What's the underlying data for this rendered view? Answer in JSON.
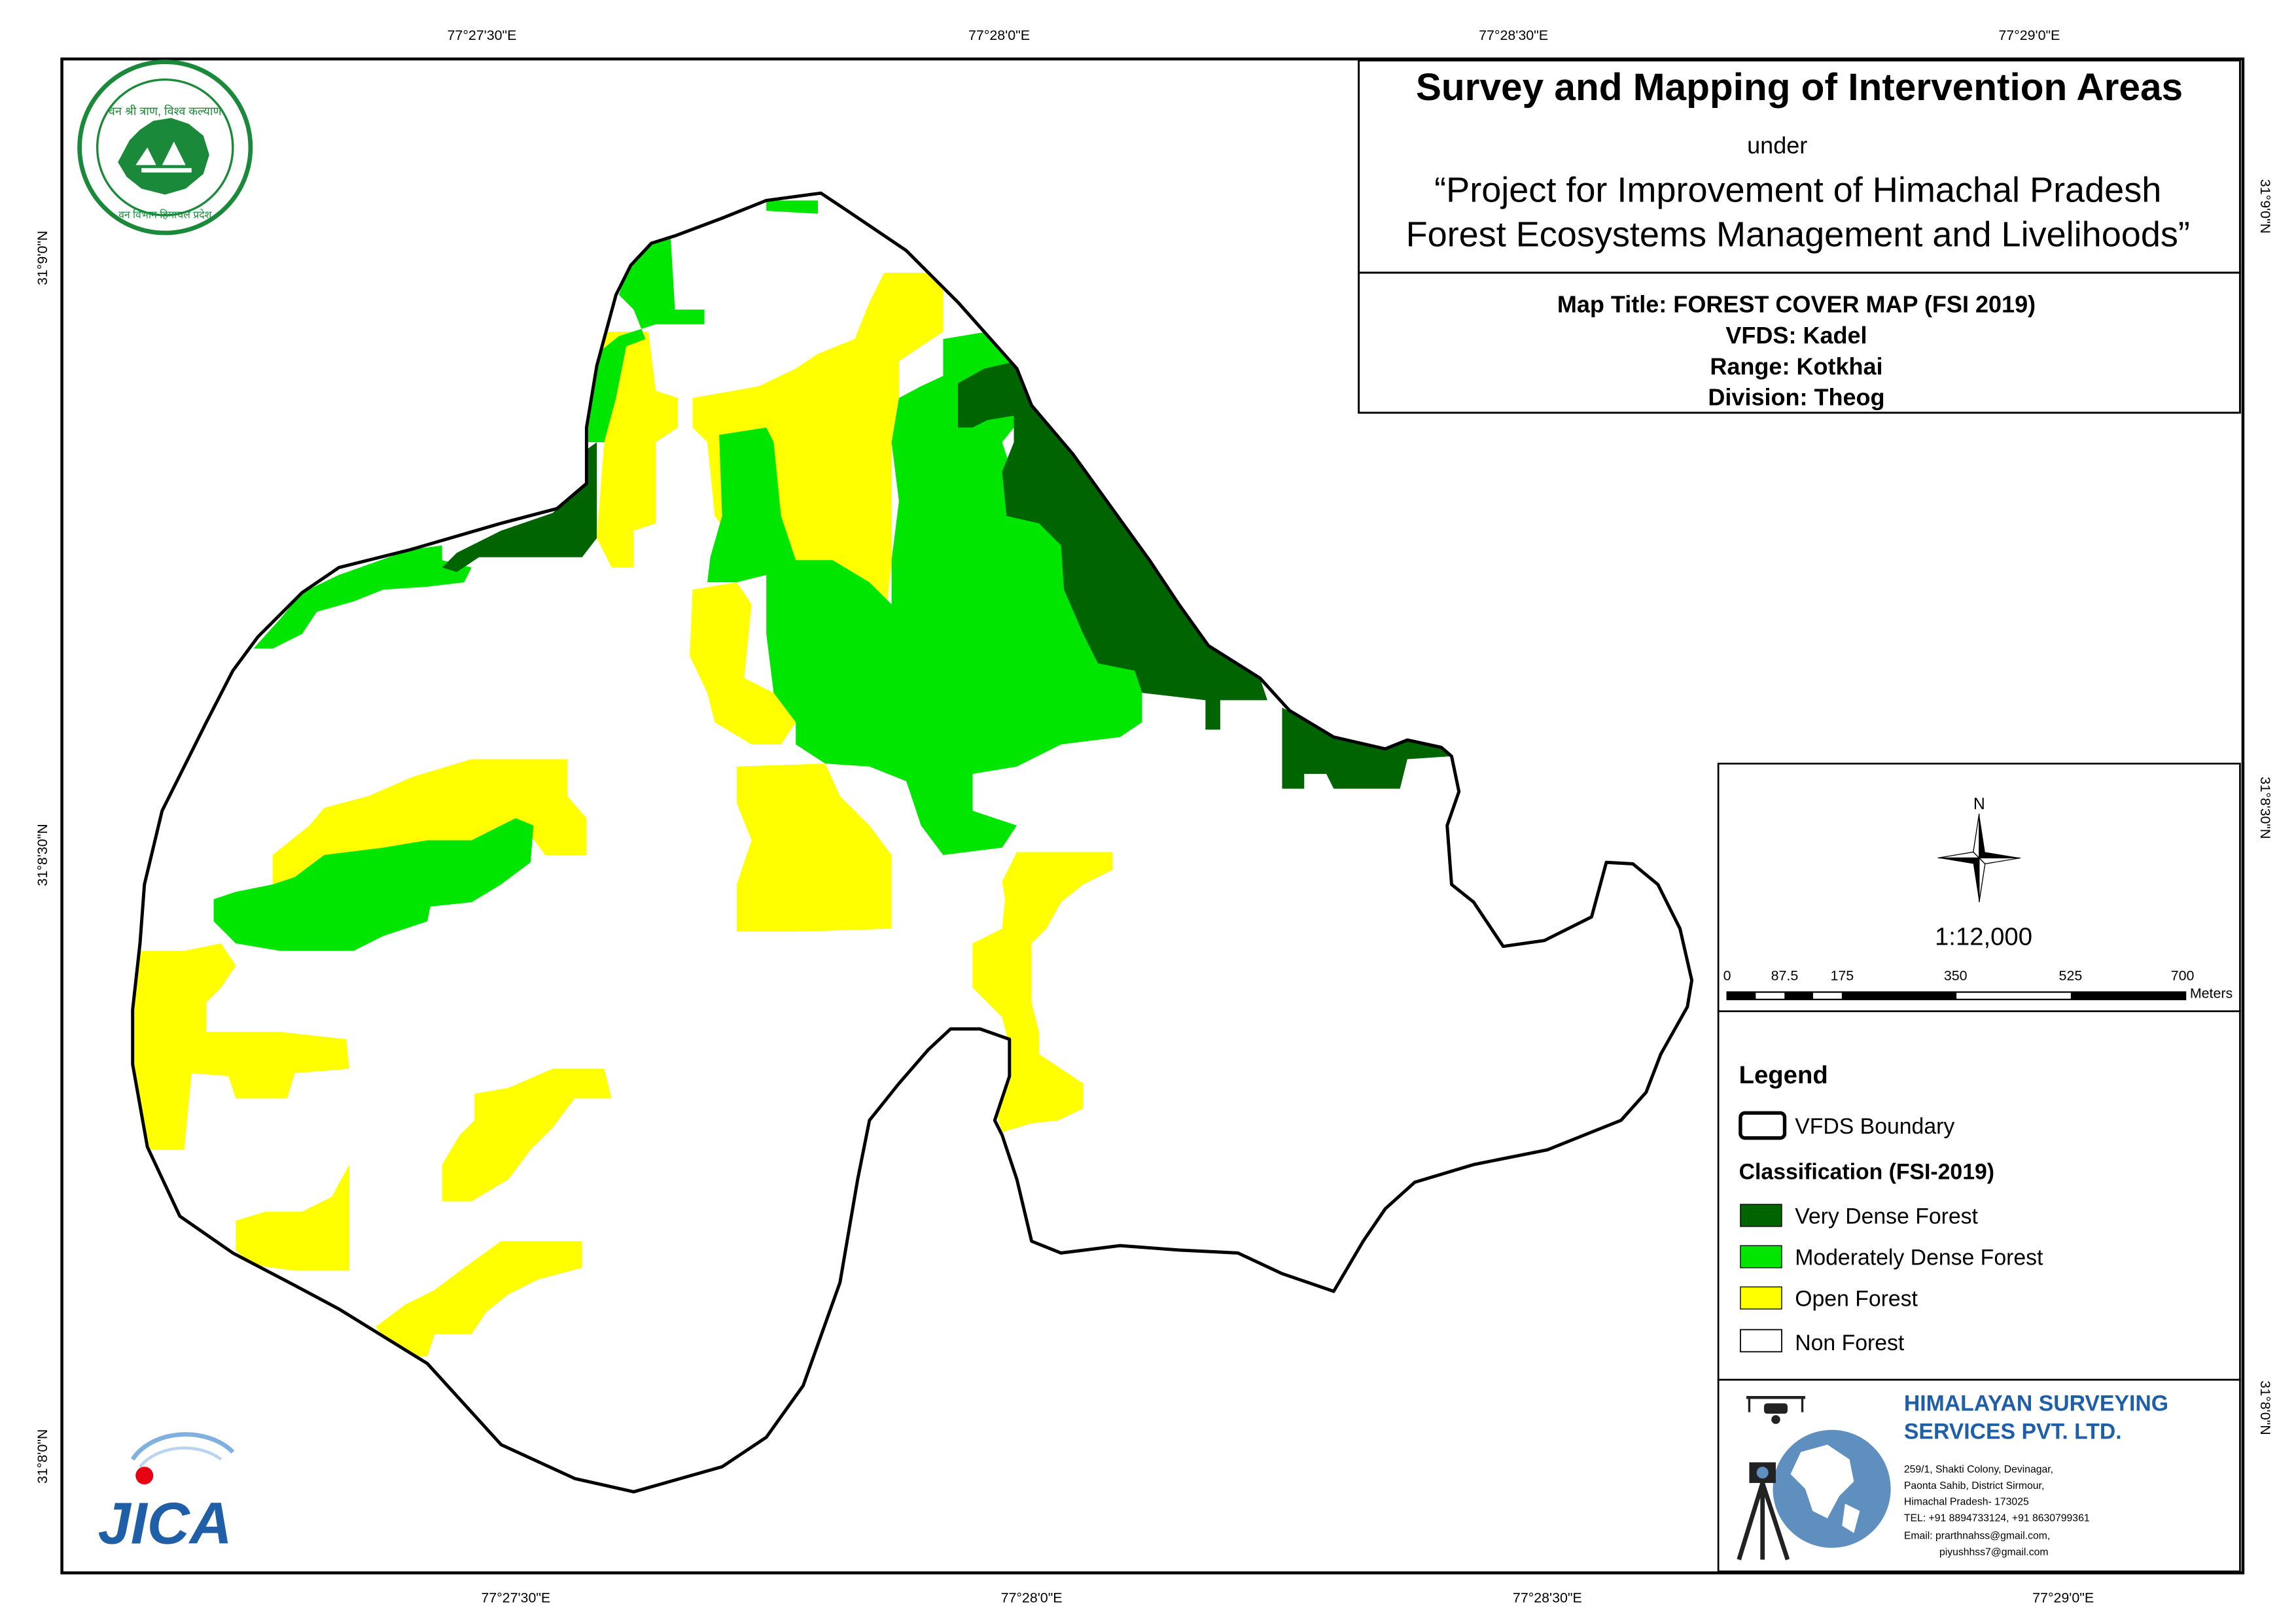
{
  "title_block": {
    "main_title": "Survey and Mapping of Intervention Areas",
    "under": "under",
    "project_line1": "“Project for Improvement of Himachal Pradesh",
    "project_line2": "Forest Ecosystems Management and Livelihoods”"
  },
  "map_info": {
    "map_title": "Map Title: FOREST COVER MAP (FSI 2019)",
    "vfds": "VFDS: Kadel",
    "range": "Range: Kotkhai",
    "division": "Division: Theog"
  },
  "graticule": {
    "top_labels": [
      "77°27'30\"E",
      "77°28'0\"E",
      "77°28'30\"E",
      "77°29'0\"E"
    ],
    "bottom_labels": [
      "77°27'30\"E",
      "77°28'0\"E",
      "77°28'30\"E",
      "77°29'0\"E"
    ],
    "left_labels": [
      "31°9'0\"N",
      "31°8'30\"N",
      "31°8'0\"N"
    ],
    "right_labels": [
      "31°9'0\"N",
      "31°8'30\"N",
      "31°8'0\"N"
    ]
  },
  "north_arrow": {
    "label": "N"
  },
  "scale": {
    "ratio": "1:12,000",
    "ticks": [
      "0",
      "87.5",
      "175",
      "350",
      "525",
      "700"
    ],
    "unit": "Meters"
  },
  "legend": {
    "heading": "Legend",
    "boundary_label": "VFDS Boundary",
    "classification_heading": "Classification (FSI-2019)",
    "classes": [
      {
        "label": "Very Dense Forest",
        "color": "#006400"
      },
      {
        "label": "Moderately Dense Forest",
        "color": "#00e600"
      },
      {
        "label": "Open Forest",
        "color": "#ffff00"
      },
      {
        "label": "Non Forest",
        "color": "#ffffff"
      }
    ]
  },
  "company": {
    "name_line1": "HIMALAYAN SURVEYING",
    "name_line2": "SERVICES PVT. LTD.",
    "address_lines": [
      "259/1, Shakti Colony, Devinagar,",
      "Paonta Sahib, District Sirmour,",
      "Himachal Pradesh- 173025",
      "TEL: +91 8894733124, +91 8630799361",
      "Email: prarthnahss@gmail.com,",
      "piyushhss7@gmail.com"
    ],
    "name_color": "#1f5fa8"
  },
  "logos": {
    "hp_forest_text": "वन श्री त्राण, विश्व कल्याण",
    "hp_forest_bottom": "वन विभाग हिमाचल प्रदेश",
    "jica_text": "JICA"
  },
  "colors": {
    "very_dense": "#006400",
    "moderately_dense": "#00e600",
    "open": "#ffff00",
    "boundary": "#000000"
  }
}
